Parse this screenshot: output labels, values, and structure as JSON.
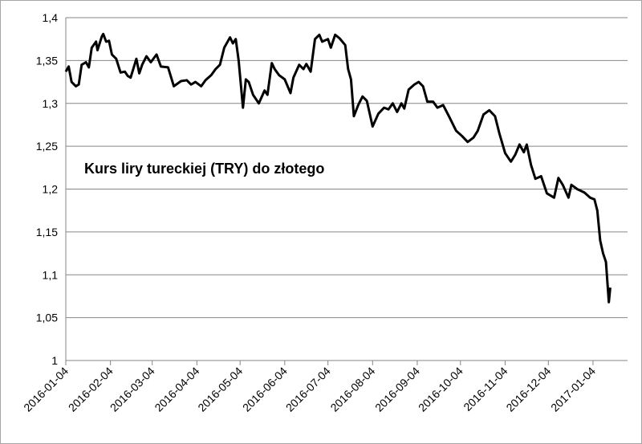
{
  "chart_data": {
    "type": "line",
    "title": "Kurs liry tureckiej (TRY) do złotego",
    "color": "#000000",
    "grid": true,
    "x": [
      "2016-01-04",
      "2016-01-06",
      "2016-01-08",
      "2016-01-11",
      "2016-01-13",
      "2016-01-15",
      "2016-01-18",
      "2016-01-20",
      "2016-01-22",
      "2016-01-25",
      "2016-01-26",
      "2016-01-29",
      "2016-01-30",
      "2016-02-01",
      "2016-02-03",
      "2016-02-05",
      "2016-02-08",
      "2016-02-11",
      "2016-02-14",
      "2016-02-16",
      "2016-02-18",
      "2016-02-22",
      "2016-02-24",
      "2016-02-26",
      "2016-02-29",
      "2016-03-03",
      "2016-03-07",
      "2016-03-10",
      "2016-03-15",
      "2016-03-19",
      "2016-03-24",
      "2016-03-28",
      "2016-03-31",
      "2016-04-03",
      "2016-04-07",
      "2016-04-10",
      "2016-04-14",
      "2016-04-17",
      "2016-04-20",
      "2016-04-23",
      "2016-04-27",
      "2016-04-29",
      "2016-05-01",
      "2016-05-03",
      "2016-05-06",
      "2016-05-08",
      "2016-05-10",
      "2016-05-13",
      "2016-05-17",
      "2016-05-21",
      "2016-05-23",
      "2016-05-26",
      "2016-05-28",
      "2016-05-31",
      "2016-06-04",
      "2016-06-08",
      "2016-06-10",
      "2016-06-14",
      "2016-06-17",
      "2016-06-19",
      "2016-06-22",
      "2016-06-25",
      "2016-06-28",
      "2016-06-30",
      "2016-07-04",
      "2016-07-06",
      "2016-07-09",
      "2016-07-12",
      "2016-07-16",
      "2016-07-18",
      "2016-07-20",
      "2016-07-22",
      "2016-07-25",
      "2016-07-28",
      "2016-07-31",
      "2016-08-04",
      "2016-08-08",
      "2016-08-12",
      "2016-08-15",
      "2016-08-18",
      "2016-08-21",
      "2016-08-24",
      "2016-08-26",
      "2016-08-29",
      "2016-09-02",
      "2016-09-05",
      "2016-09-08",
      "2016-09-11",
      "2016-09-15",
      "2016-09-18",
      "2016-09-22",
      "2016-09-26",
      "2016-10-01",
      "2016-10-05",
      "2016-10-09",
      "2016-10-13",
      "2016-10-16",
      "2016-10-20",
      "2016-10-24",
      "2016-10-28",
      "2016-10-31",
      "2016-11-04",
      "2016-11-08",
      "2016-11-11",
      "2016-11-14",
      "2016-11-17",
      "2016-11-19",
      "2016-11-22",
      "2016-11-25",
      "2016-11-29",
      "2016-12-03",
      "2016-12-08",
      "2016-12-11",
      "2016-12-14",
      "2016-12-18",
      "2016-12-20",
      "2016-12-24",
      "2016-12-29",
      "2017-01-02",
      "2017-01-05",
      "2017-01-07",
      "2017-01-09",
      "2017-01-11",
      "2017-01-13",
      "2017-01-15",
      "2017-01-16"
    ],
    "values": [
      1.337,
      1.343,
      1.325,
      1.32,
      1.322,
      1.345,
      1.348,
      1.342,
      1.365,
      1.372,
      1.362,
      1.378,
      1.381,
      1.372,
      1.373,
      1.357,
      1.352,
      1.336,
      1.337,
      1.332,
      1.33,
      1.352,
      1.335,
      1.345,
      1.355,
      1.348,
      1.357,
      1.343,
      1.342,
      1.32,
      1.326,
      1.327,
      1.322,
      1.325,
      1.32,
      1.327,
      1.333,
      1.34,
      1.345,
      1.365,
      1.377,
      1.37,
      1.375,
      1.35,
      1.295,
      1.328,
      1.325,
      1.31,
      1.3,
      1.315,
      1.31,
      1.347,
      1.34,
      1.333,
      1.328,
      1.312,
      1.33,
      1.345,
      1.34,
      1.346,
      1.337,
      1.375,
      1.38,
      1.372,
      1.375,
      1.365,
      1.38,
      1.376,
      1.368,
      1.34,
      1.328,
      1.285,
      1.298,
      1.308,
      1.303,
      1.273,
      1.288,
      1.295,
      1.293,
      1.3,
      1.29,
      1.3,
      1.294,
      1.316,
      1.322,
      1.325,
      1.32,
      1.302,
      1.302,
      1.295,
      1.298,
      1.285,
      1.268,
      1.262,
      1.255,
      1.26,
      1.268,
      1.287,
      1.292,
      1.285,
      1.265,
      1.242,
      1.232,
      1.24,
      1.252,
      1.243,
      1.252,
      1.228,
      1.212,
      1.215,
      1.195,
      1.19,
      1.213,
      1.205,
      1.19,
      1.205,
      1.2,
      1.196,
      1.19,
      1.188,
      1.175,
      1.14,
      1.125,
      1.115,
      1.068,
      1.085
    ],
    "xlim": [
      "2016-01-04",
      "2017-01-28"
    ],
    "xticks": [
      "2016-01-04",
      "2016-02-04",
      "2016-03-04",
      "2016-04-04",
      "2016-05-04",
      "2016-06-04",
      "2016-07-04",
      "2016-08-04",
      "2016-09-04",
      "2016-10-04",
      "2016-11-04",
      "2016-12-04",
      "2017-01-04"
    ],
    "ylim": [
      1,
      1.4
    ],
    "yticks": [
      1,
      {
        "value": 1.05,
        "label": "1,05"
      },
      {
        "value": 1.1,
        "label": "1,1"
      },
      {
        "value": 1.15,
        "label": "1,15"
      },
      {
        "value": 1.2,
        "label": "1,2"
      },
      {
        "value": 1.25,
        "label": "1,25"
      },
      {
        "value": 1.3,
        "label": "1,3"
      },
      {
        "value": 1.35,
        "label": "1,35"
      },
      {
        "value": 1.4,
        "label": "1,4"
      }
    ]
  }
}
